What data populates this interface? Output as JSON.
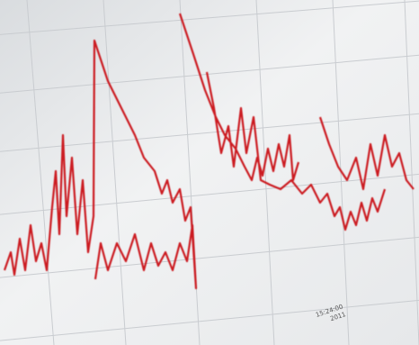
{
  "photo": {
    "stamp_time": "15:24:00",
    "stamp_year": "2011"
  }
}
